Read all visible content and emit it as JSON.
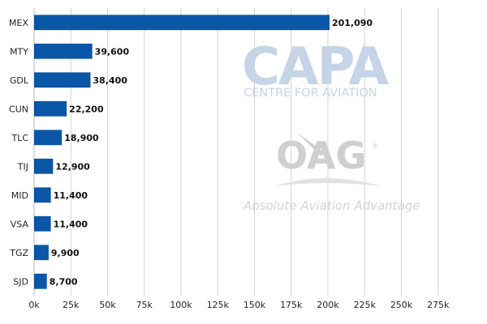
{
  "chart_data": {
    "type": "bar",
    "orientation": "horizontal",
    "categories": [
      "MEX",
      "MTY",
      "GDL",
      "CUN",
      "TLC",
      "TIJ",
      "MID",
      "VSA",
      "TGZ",
      "SJD"
    ],
    "values": [
      201090,
      39600,
      38400,
      22200,
      18900,
      12900,
      11400,
      11400,
      9900,
      8700
    ],
    "value_labels": [
      "201,090",
      "39,600",
      "38,400",
      "22,200",
      "18,900",
      "12,900",
      "11,400",
      "11,400",
      "9,900",
      "8,700"
    ],
    "xlim": [
      0,
      300000
    ],
    "x_ticks": [
      0,
      25000,
      50000,
      75000,
      100000,
      125000,
      150000,
      175000,
      200000,
      225000,
      250000,
      275000
    ],
    "x_tick_labels": [
      "0k",
      "25k",
      "50k",
      "75k",
      "100k",
      "125k",
      "150k",
      "175k",
      "200k",
      "225k",
      "250k",
      "275k"
    ],
    "grid": "vertical",
    "legend": "none",
    "bar_color": "#0b56a6",
    "grid_color": "#d0d0d0"
  },
  "watermarks": {
    "capa": {
      "name": "CAPA",
      "subtitle": "CENTRE FOR AVIATION",
      "color": "#c5d4e6"
    },
    "oag": {
      "name": "OAG",
      "registered": "®",
      "tagline": "Absolute Aviation Advantage",
      "color": "#cfcfcf"
    }
  }
}
